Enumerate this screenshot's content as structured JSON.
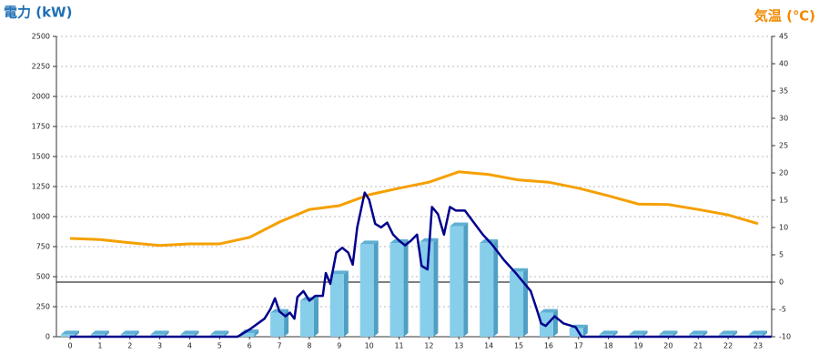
{
  "chart_data": {
    "type": "bar",
    "title_left": "電力 (kW)",
    "title_left_color": "#1f6fb5",
    "title_right": "気温 (℃)",
    "title_right_color": "#f08a00",
    "categories": [
      "0",
      "1",
      "2",
      "3",
      "4",
      "5",
      "6",
      "7",
      "8",
      "9",
      "10",
      "11",
      "12",
      "13",
      "14",
      "15",
      "16",
      "17",
      "18",
      "19",
      "20",
      "21",
      "22",
      "23"
    ],
    "bars": {
      "color": "#87ceeb",
      "values": [
        20,
        20,
        20,
        20,
        20,
        20,
        30,
        200,
        300,
        520,
        770,
        780,
        790,
        920,
        780,
        540,
        200,
        70,
        20,
        20,
        20,
        20,
        20,
        20
      ]
    },
    "power_line": {
      "color": "#00008b",
      "x": [
        0,
        5.6,
        6.0,
        6.5,
        6.7,
        6.85,
        7.0,
        7.2,
        7.35,
        7.5,
        7.6,
        7.8,
        8.0,
        8.2,
        8.45,
        8.55,
        8.7,
        8.9,
        9.1,
        9.3,
        9.45,
        9.6,
        9.85,
        10.0,
        10.2,
        10.4,
        10.6,
        10.8,
        11.0,
        11.2,
        11.4,
        11.6,
        11.75,
        11.95,
        12.1,
        12.3,
        12.5,
        12.7,
        12.9,
        13.2,
        13.5,
        13.8,
        14.1,
        14.5,
        14.9,
        15.4,
        15.6,
        15.75,
        15.9,
        16.2,
        16.5,
        16.9,
        17.1,
        23.45
      ],
      "values": [
        0,
        0,
        60,
        150,
        230,
        320,
        210,
        170,
        200,
        150,
        330,
        380,
        300,
        340,
        340,
        530,
        440,
        700,
        740,
        700,
        600,
        910,
        1200,
        1140,
        940,
        910,
        950,
        850,
        800,
        760,
        800,
        850,
        590,
        560,
        1080,
        1020,
        850,
        1080,
        1050,
        1050,
        950,
        850,
        770,
        640,
        530,
        380,
        230,
        110,
        90,
        170,
        110,
        80,
        0,
        0
      ]
    },
    "temperature": {
      "color": "#f5a000",
      "axis": "y2",
      "values": [
        8,
        7.8,
        7.2,
        6.7,
        7,
        7,
        8.2,
        11,
        13.3,
        14,
        16,
        17.2,
        18.3,
        20.2,
        19.7,
        18.7,
        18.3,
        17.2,
        15.8,
        14.3,
        14.2,
        13.3,
        12.3,
        10.7
      ]
    },
    "ylim": [
      0,
      2500
    ],
    "yticks": [
      0,
      250,
      500,
      750,
      1000,
      1250,
      1500,
      1750,
      2000,
      2250,
      2500
    ],
    "y2lim": [
      -10,
      45
    ],
    "y2ticks": [
      -10,
      -5,
      0,
      5,
      10,
      15,
      20,
      25,
      30,
      35,
      40,
      45
    ],
    "grid": true
  }
}
